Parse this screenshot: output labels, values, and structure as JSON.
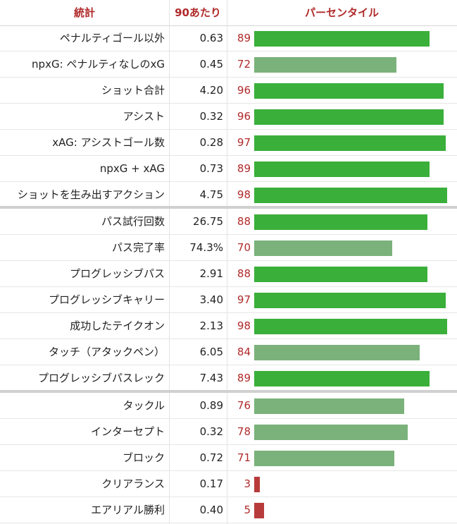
{
  "headers": {
    "stat": "統計",
    "per90": "90あたり",
    "percentile": "パーセンタイル"
  },
  "colors": {
    "high": "#3aaf3a",
    "mid": "#7bb27b",
    "low": "#b83b3b",
    "header_text": "#b02a2a",
    "percentile_text": "#b02a2a"
  },
  "rows": [
    {
      "stat": "ペナルティゴール以外",
      "per90": "0.63",
      "percentile": "89"
    },
    {
      "stat": "npxG: ペナルティなしのxG",
      "per90": "0.45",
      "percentile": "72"
    },
    {
      "stat": "ショット合計",
      "per90": "4.20",
      "percentile": "96"
    },
    {
      "stat": "アシスト",
      "per90": "0.32",
      "percentile": "96"
    },
    {
      "stat": "xAG: アシストゴール数",
      "per90": "0.28",
      "percentile": "97"
    },
    {
      "stat": "npxG + xAG",
      "per90": "0.73",
      "percentile": "89"
    },
    {
      "stat": "ショットを生み出すアクション",
      "per90": "4.75",
      "percentile": "98"
    },
    {
      "stat": "パス試行回数",
      "per90": "26.75",
      "percentile": "88"
    },
    {
      "stat": "パス完了率",
      "per90": "74.3%",
      "percentile": "70"
    },
    {
      "stat": "プログレッシブパス",
      "per90": "2.91",
      "percentile": "88"
    },
    {
      "stat": "プログレッシブキャリー",
      "per90": "3.40",
      "percentile": "97"
    },
    {
      "stat": "成功したテイクオン",
      "per90": "2.13",
      "percentile": "98"
    },
    {
      "stat": "タッチ（アタックペン）",
      "per90": "6.05",
      "percentile": "84"
    },
    {
      "stat": "プログレッシブパスレック",
      "per90": "7.43",
      "percentile": "89"
    },
    {
      "stat": "タックル",
      "per90": "0.89",
      "percentile": "76"
    },
    {
      "stat": "インターセプト",
      "per90": "0.32",
      "percentile": "78"
    },
    {
      "stat": "ブロック",
      "per90": "0.72",
      "percentile": "71"
    },
    {
      "stat": "クリアランス",
      "per90": "0.17",
      "percentile": "3"
    },
    {
      "stat": "エアリアル勝利",
      "per90": "0.40",
      "percentile": "5"
    }
  ]
}
